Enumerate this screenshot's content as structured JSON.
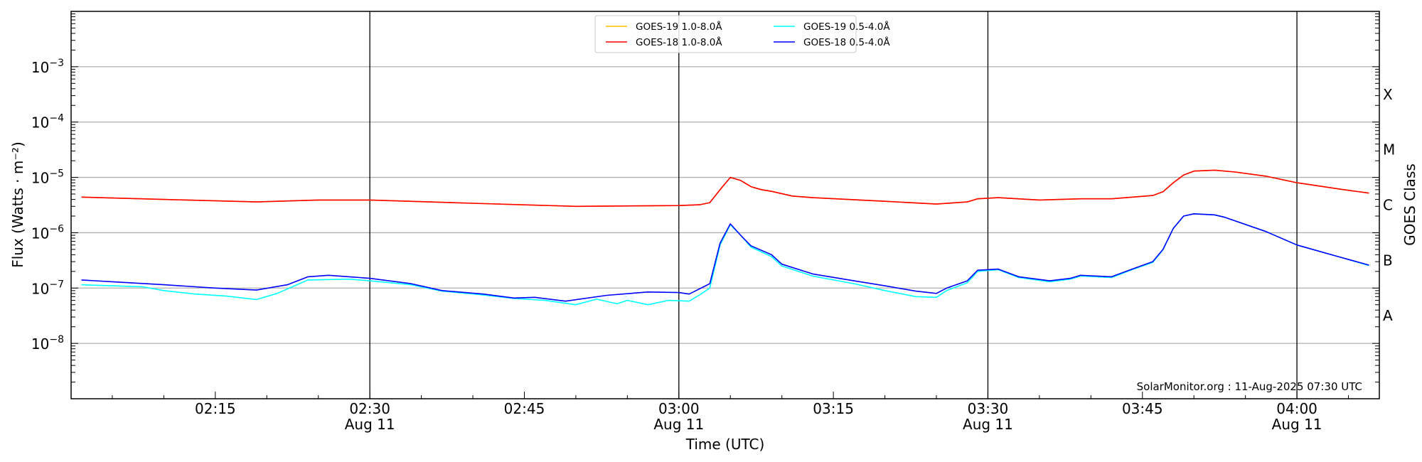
{
  "chart_data": {
    "type": "line",
    "xlabel": "Time (UTC)",
    "ylabel": "Flux (Watts · m⁻²)",
    "y2label": "GOES Class",
    "yscale": "log",
    "ylim": [
      1e-09,
      0.01
    ],
    "xlim": [
      "02:01",
      "04:08"
    ],
    "grid": "horizontal at decades",
    "legend_position": "top-center",
    "annotation": "SolarMonitor.org : 11-Aug-2025 07:30 UTC",
    "yticks": [
      {
        "value": 1e-08,
        "base": "10",
        "exp": "−8"
      },
      {
        "value": 1e-07,
        "base": "10",
        "exp": "−7"
      },
      {
        "value": 1e-06,
        "base": "10",
        "exp": "−6"
      },
      {
        "value": 1e-05,
        "base": "10",
        "exp": "−5"
      },
      {
        "value": 0.0001,
        "base": "10",
        "exp": "−4"
      },
      {
        "value": 0.001,
        "base": "10",
        "exp": "−3"
      }
    ],
    "xticks": [
      {
        "time": "02:15",
        "label": "02:15",
        "date": ""
      },
      {
        "time": "02:30",
        "label": "02:30",
        "date": "Aug 11"
      },
      {
        "time": "02:45",
        "label": "02:45",
        "date": ""
      },
      {
        "time": "03:00",
        "label": "03:00",
        "date": "Aug 11"
      },
      {
        "time": "03:15",
        "label": "03:15",
        "date": ""
      },
      {
        "time": "03:30",
        "label": "03:30",
        "date": "Aug 11"
      },
      {
        "time": "03:45",
        "label": "03:45",
        "date": ""
      },
      {
        "time": "04:00",
        "label": "04:00",
        "date": "Aug 11"
      }
    ],
    "vlines": [
      "02:30",
      "03:00",
      "03:30",
      "04:00"
    ],
    "goes_classes": [
      {
        "label": "A",
        "low": 1e-08,
        "high": 1e-07
      },
      {
        "label": "B",
        "low": 1e-07,
        "high": 1e-06
      },
      {
        "label": "C",
        "low": 1e-06,
        "high": 1e-05
      },
      {
        "label": "M",
        "low": 1e-05,
        "high": 0.0001
      },
      {
        "label": "X",
        "low": 0.0001,
        "high": 0.001
      }
    ],
    "series": [
      {
        "name": "GOES-19 1.0-8.0Å",
        "color": "#ffc000",
        "x": [
          "02:02",
          "02:10",
          "02:19",
          "02:25",
          "02:30",
          "02:40",
          "02:50",
          "03:00",
          "03:02",
          "03:03",
          "03:04",
          "03:05",
          "03:06",
          "03:07",
          "03:08",
          "03:09",
          "03:11",
          "03:13",
          "03:20",
          "03:25",
          "03:28",
          "03:29",
          "03:31",
          "03:35",
          "03:39",
          "03:42",
          "03:46",
          "03:47",
          "03:48",
          "03:49",
          "03:50",
          "03:52",
          "03:54",
          "03:57",
          "04:00",
          "04:04",
          "04:07"
        ],
        "y": [
          4.4e-06,
          4e-06,
          3.6e-06,
          3.9e-06,
          3.9e-06,
          3.4e-06,
          3e-06,
          3.1e-06,
          3.2e-06,
          3.5e-06,
          6e-06,
          1e-05,
          8.8e-06,
          6.8e-06,
          6e-06,
          5.6e-06,
          4.6e-06,
          4.3e-06,
          3.7e-06,
          3.3e-06,
          3.6e-06,
          4.1e-06,
          4.3e-06,
          3.9e-06,
          4.1e-06,
          4.1e-06,
          4.7e-06,
          5.5e-06,
          8e-06,
          1.1e-05,
          1.3e-05,
          1.35e-05,
          1.25e-05,
          1.05e-05,
          8e-06,
          6.2e-06,
          5.2e-06
        ]
      },
      {
        "name": "GOES-18 1.0-8.0Å",
        "color": "#ff0000",
        "x": [
          "02:02",
          "02:10",
          "02:19",
          "02:25",
          "02:30",
          "02:40",
          "02:50",
          "03:00",
          "03:02",
          "03:03",
          "03:04",
          "03:05",
          "03:06",
          "03:07",
          "03:08",
          "03:09",
          "03:11",
          "03:13",
          "03:20",
          "03:25",
          "03:28",
          "03:29",
          "03:31",
          "03:35",
          "03:39",
          "03:42",
          "03:46",
          "03:47",
          "03:48",
          "03:49",
          "03:50",
          "03:52",
          "03:54",
          "03:57",
          "04:00",
          "04:04",
          "04:07"
        ],
        "y": [
          4.4e-06,
          4e-06,
          3.6e-06,
          3.9e-06,
          3.9e-06,
          3.4e-06,
          3e-06,
          3.1e-06,
          3.2e-06,
          3.5e-06,
          6e-06,
          1e-05,
          8.8e-06,
          6.8e-06,
          6e-06,
          5.6e-06,
          4.6e-06,
          4.3e-06,
          3.7e-06,
          3.3e-06,
          3.6e-06,
          4.1e-06,
          4.3e-06,
          3.9e-06,
          4.1e-06,
          4.1e-06,
          4.7e-06,
          5.5e-06,
          8e-06,
          1.1e-05,
          1.3e-05,
          1.35e-05,
          1.25e-05,
          1.05e-05,
          8e-06,
          6.2e-06,
          5.2e-06
        ]
      },
      {
        "name": "GOES-19 0.5-4.0Å",
        "color": "#00ffff",
        "x": [
          "02:02",
          "02:05",
          "02:08",
          "02:10",
          "02:13",
          "02:16",
          "02:19",
          "02:21",
          "02:24",
          "02:28",
          "02:30",
          "02:34",
          "02:37",
          "02:41",
          "02:44",
          "02:47",
          "02:50",
          "02:52",
          "02:54",
          "02:55",
          "02:57",
          "02:59",
          "03:01",
          "03:02",
          "03:03",
          "03:04",
          "03:05",
          "03:06",
          "03:07",
          "03:09",
          "03:10",
          "03:13",
          "03:17",
          "03:20",
          "03:23",
          "03:25",
          "03:26",
          "03:28",
          "03:29",
          "03:31",
          "03:33",
          "03:36",
          "03:38",
          "03:39",
          "03:42",
          "03:44",
          "03:46",
          "03:47",
          "03:48",
          "03:49",
          "03:50",
          "03:52",
          "03:53",
          "03:57",
          "04:00",
          "04:04",
          "04:07"
        ],
        "y": [
          1.15e-07,
          1.1e-07,
          1.05e-07,
          9e-08,
          7.8e-08,
          7.2e-08,
          6.2e-08,
          8e-08,
          1.4e-07,
          1.45e-07,
          1.35e-07,
          1.15e-07,
          8.8e-08,
          7.5e-08,
          6.5e-08,
          6e-08,
          5e-08,
          6.3e-08,
          5.2e-08,
          6e-08,
          5e-08,
          6e-08,
          5.8e-08,
          7.5e-08,
          1e-07,
          6e-07,
          1.4e-06,
          9e-07,
          5.5e-07,
          3.7e-07,
          2.5e-07,
          1.65e-07,
          1.2e-07,
          9e-08,
          7e-08,
          6.8e-08,
          9e-08,
          1.25e-07,
          2e-07,
          2.15e-07,
          1.55e-07,
          1.3e-07,
          1.45e-07,
          1.65e-07,
          1.55e-07,
          2.15e-07,
          2.9e-07,
          4.9e-07,
          1.2e-06,
          2e-06,
          2.2e-06,
          2.1e-06,
          1.9e-06,
          1.05e-06,
          6e-07,
          3.7e-07,
          2.55e-07
        ]
      },
      {
        "name": "GOES-18 0.5-4.0Å",
        "color": "#0000ff",
        "x": [
          "02:02",
          "02:05",
          "02:10",
          "02:15",
          "02:19",
          "02:22",
          "02:24",
          "02:26",
          "02:28",
          "02:30",
          "02:34",
          "02:37",
          "02:41",
          "02:44",
          "02:46",
          "02:49",
          "02:53",
          "02:57",
          "03:00",
          "03:01",
          "03:03",
          "03:04",
          "03:05",
          "03:06",
          "03:07",
          "03:09",
          "03:10",
          "03:13",
          "03:17",
          "03:20",
          "03:23",
          "03:25",
          "03:26",
          "03:28",
          "03:29",
          "03:31",
          "03:33",
          "03:36",
          "03:38",
          "03:39",
          "03:42",
          "03:44",
          "03:46",
          "03:47",
          "03:48",
          "03:49",
          "03:50",
          "03:52",
          "03:53",
          "03:57",
          "04:00",
          "04:04",
          "04:07"
        ],
        "y": [
          1.4e-07,
          1.3e-07,
          1.15e-07,
          1e-07,
          9.2e-08,
          1.15e-07,
          1.6e-07,
          1.7e-07,
          1.6e-07,
          1.5e-07,
          1.2e-07,
          9e-08,
          7.8e-08,
          6.6e-08,
          6.8e-08,
          5.8e-08,
          7.4e-08,
          8.5e-08,
          8.3e-08,
          7.8e-08,
          1.2e-07,
          6.5e-07,
          1.45e-06,
          9e-07,
          5.8e-07,
          4e-07,
          2.7e-07,
          1.8e-07,
          1.35e-07,
          1.1e-07,
          8.8e-08,
          8e-08,
          1e-07,
          1.35e-07,
          2.1e-07,
          2.2e-07,
          1.6e-07,
          1.35e-07,
          1.5e-07,
          1.7e-07,
          1.6e-07,
          2.2e-07,
          3e-07,
          5e-07,
          1.2e-06,
          2e-06,
          2.2e-06,
          2.1e-06,
          1.9e-06,
          1.05e-06,
          6e-07,
          3.7e-07,
          2.6e-07
        ]
      }
    ]
  }
}
